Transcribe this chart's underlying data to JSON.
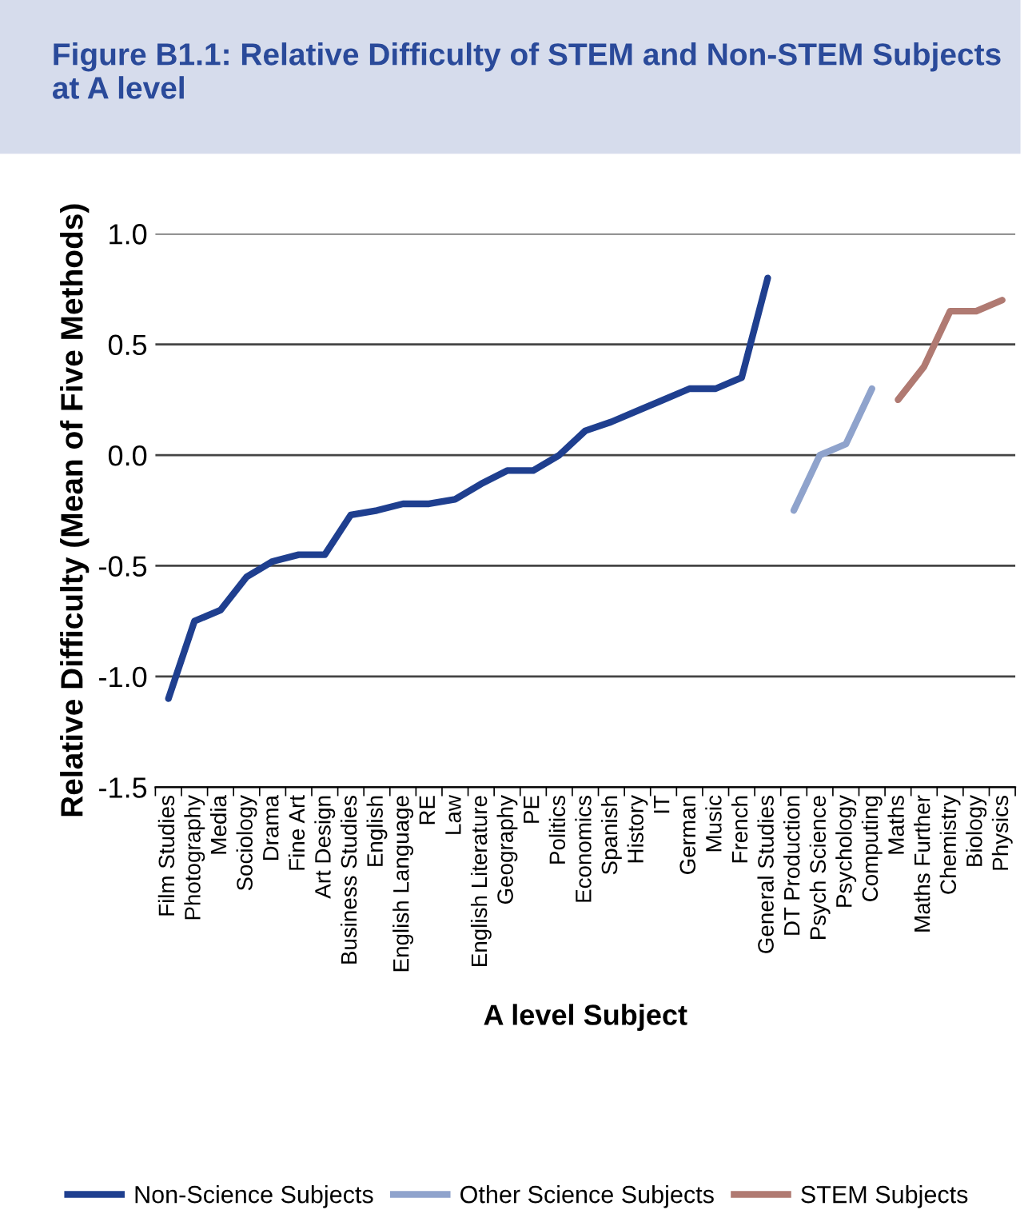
{
  "chart_data": {
    "type": "line",
    "title": "Figure B1.1: Relative Difficulty of STEM and Non-STEM Subjects at A level",
    "xlabel": "A level Subject",
    "ylabel": "Relative Difficulty (Mean of Five Methods)",
    "categories": [
      "Film Studies",
      "Photography",
      "Media",
      "Sociology",
      "Drama",
      "Fine Art",
      "Art Design",
      "Business Studies",
      "English",
      "English Language",
      "RE",
      "Law",
      "English Literature",
      "Geography",
      "PE",
      "Politics",
      "Economics",
      "Spanish",
      "History",
      "IT",
      "German",
      "Music",
      "French",
      "General Studies",
      "DT Production",
      "Psych Science",
      "Psychology",
      "Computing",
      "Maths",
      "Maths Further",
      "Chemistry",
      "Biology",
      "Physics"
    ],
    "series": [
      {
        "name": "Non-Science Subjects",
        "color": "#1f3f8f",
        "values": [
          -1.1,
          -0.75,
          -0.7,
          -0.55,
          -0.48,
          -0.45,
          -0.45,
          -0.27,
          -0.25,
          -0.22,
          -0.22,
          -0.2,
          -0.13,
          -0.07,
          -0.07,
          0.0,
          0.11,
          0.15,
          0.2,
          0.25,
          0.3,
          0.3,
          0.35,
          0.8,
          null,
          null,
          null,
          null,
          null,
          null,
          null,
          null,
          null
        ]
      },
      {
        "name": "Other Science Subjects",
        "color": "#8fa3cc",
        "values": [
          null,
          null,
          null,
          null,
          null,
          null,
          null,
          null,
          null,
          null,
          null,
          null,
          null,
          null,
          null,
          null,
          null,
          null,
          null,
          null,
          null,
          null,
          null,
          null,
          -0.25,
          0.0,
          0.05,
          0.3,
          null,
          null,
          null,
          null,
          null
        ]
      },
      {
        "name": "STEM Subjects",
        "color": "#b07a72",
        "values": [
          null,
          null,
          null,
          null,
          null,
          null,
          null,
          null,
          null,
          null,
          null,
          null,
          null,
          null,
          null,
          null,
          null,
          null,
          null,
          null,
          null,
          null,
          null,
          null,
          null,
          null,
          null,
          null,
          0.25,
          0.4,
          0.65,
          0.65,
          0.7
        ]
      }
    ],
    "ylim": [
      -1.5,
      1.0
    ],
    "yticks": [
      {
        "value": -1.5,
        "label": "-1.5"
      },
      {
        "value": -1.0,
        "label": "-1.0"
      },
      {
        "value": -0.5,
        "label": "-0.5"
      },
      {
        "value": 0.0,
        "label": "0.0"
      },
      {
        "value": 0.5,
        "label": "0.5"
      },
      {
        "value": 1.0,
        "label": "1.0"
      }
    ],
    "grid": "y",
    "legend": "bottom",
    "marker": "none",
    "line_style": "solid"
  }
}
